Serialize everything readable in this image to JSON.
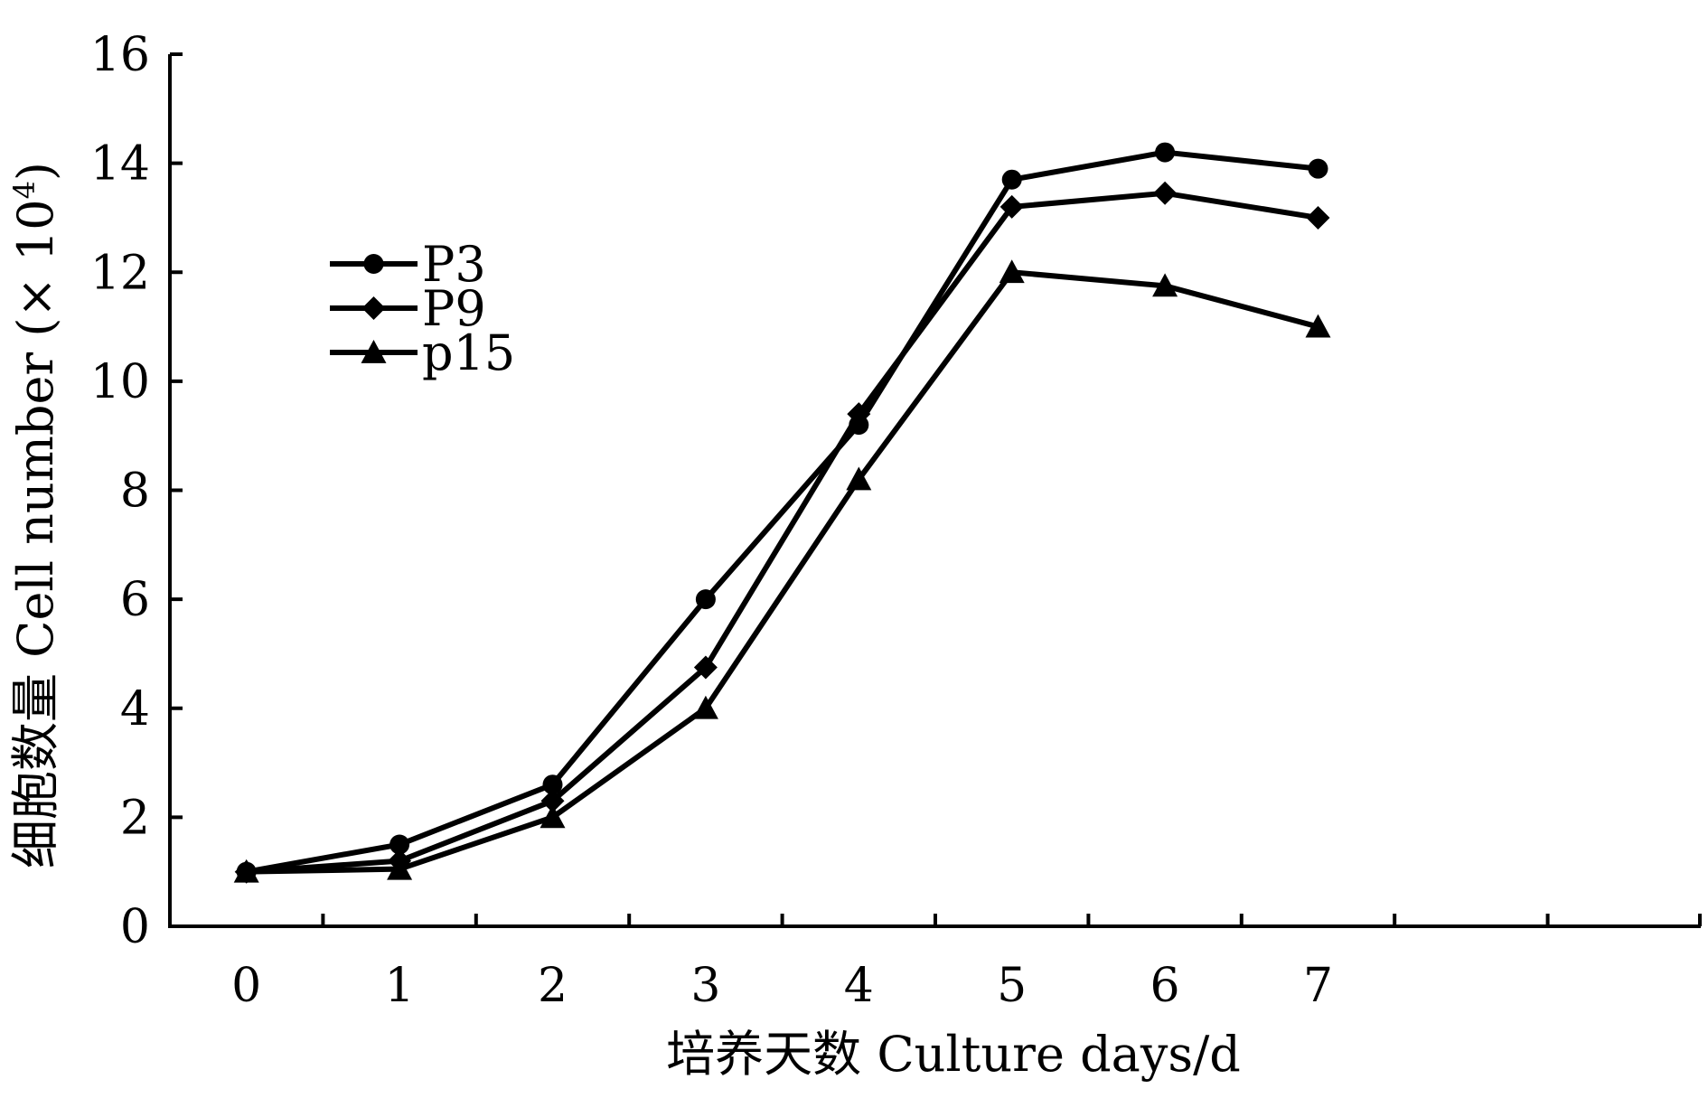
{
  "chart_data": {
    "type": "line",
    "title": "",
    "xlabel": "培养天数  Culture days/d",
    "ylabel_main": "细胞数量  Cell number (× 10",
    "ylabel_sup": "4",
    "ylabel_close": ")",
    "xlim": [
      -0.5,
      9.5
    ],
    "ylim": [
      0,
      16
    ],
    "x_ticks": [
      0,
      1,
      2,
      3,
      4,
      5,
      6,
      7
    ],
    "x_tick_marks": [
      0.5,
      1.5,
      2.5,
      3.5,
      4.5,
      5.5,
      6.5,
      7.5,
      8.5
    ],
    "y_ticks": [
      0,
      2,
      4,
      6,
      8,
      10,
      12,
      14,
      16
    ],
    "grid": false,
    "legend_position": "top-left",
    "x": [
      0,
      1,
      2,
      3,
      4,
      5,
      6,
      7
    ],
    "series": [
      {
        "name": "P3",
        "marker": "circle",
        "values": [
          1.0,
          1.5,
          2.6,
          6.0,
          9.2,
          13.7,
          14.2,
          13.9
        ]
      },
      {
        "name": "P9",
        "marker": "diamond",
        "values": [
          1.0,
          1.2,
          2.3,
          4.75,
          9.4,
          13.2,
          13.45,
          13.0
        ]
      },
      {
        "name": "p15",
        "marker": "triangle",
        "values": [
          1.0,
          1.05,
          2.0,
          4.0,
          8.2,
          12.0,
          11.75,
          11.0
        ]
      }
    ],
    "colors": {
      "line": "#000000",
      "axis": "#000000"
    }
  }
}
